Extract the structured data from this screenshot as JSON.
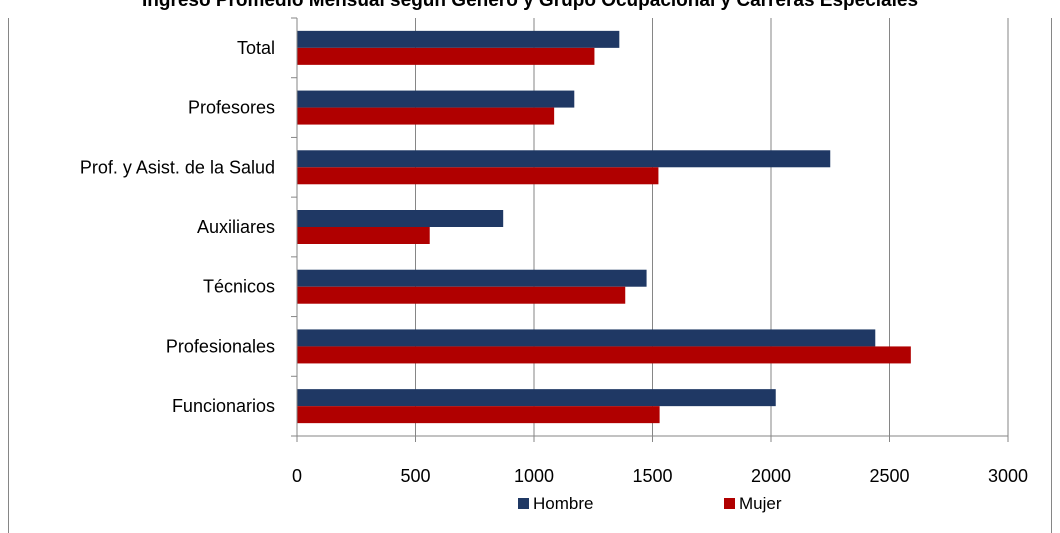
{
  "chart_data": {
    "type": "bar",
    "orientation": "horizontal",
    "title": "Ingreso Promedio Mensual según Género y Grupo Ocupacional y Carreras Especiales",
    "xlabel": "",
    "ylabel": "",
    "xlim": [
      0,
      3000
    ],
    "xticks": [
      "0",
      "500",
      "1000",
      "1500",
      "2000",
      "2500",
      "3000"
    ],
    "categories": [
      "Total",
      "Profesores",
      "Prof. y Asist. de la Salud",
      "Auxiliares",
      "Técnicos",
      "Profesionales",
      "Funcionarios"
    ],
    "series": [
      {
        "name": "Hombre",
        "color": "#1f3864",
        "values": [
          1360,
          1170,
          2250,
          870,
          1475,
          2440,
          2020
        ]
      },
      {
        "name": "Mujer",
        "color": "#b00000",
        "values": [
          1255,
          1085,
          1525,
          560,
          1385,
          2590,
          1530
        ]
      }
    ],
    "grid": true,
    "legend": "bottom"
  }
}
